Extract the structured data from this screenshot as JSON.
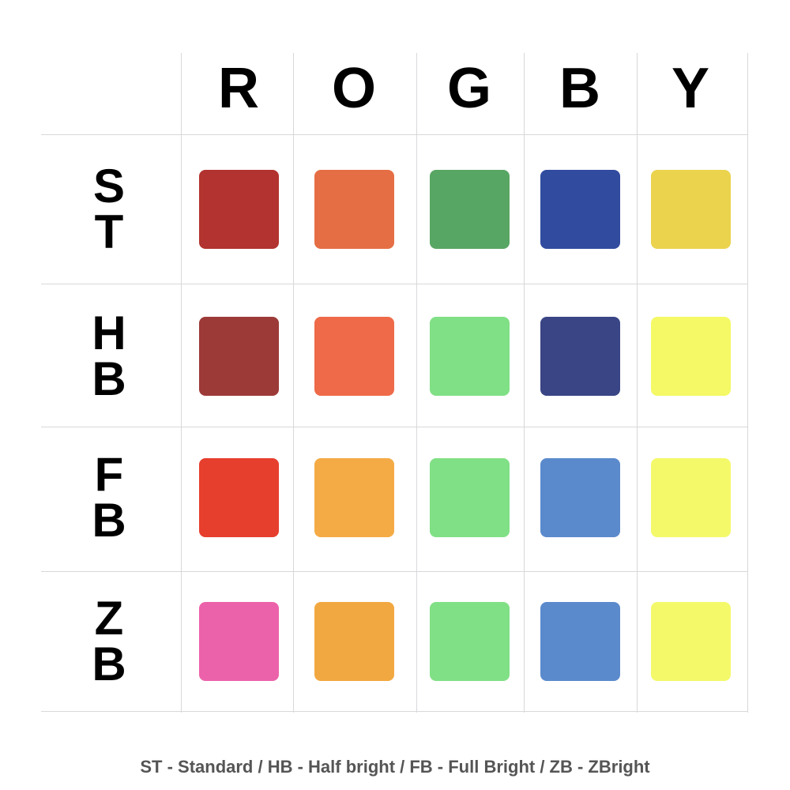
{
  "columns": [
    "R",
    "O",
    "G",
    "B",
    "Y"
  ],
  "rows": [
    {
      "label_top": "S",
      "label_bottom": "T",
      "colors": [
        "#b2332f",
        "#e56e44",
        "#58a663",
        "#314b9f",
        "#ebd34e"
      ]
    },
    {
      "label_top": "H",
      "label_bottom": "B",
      "colors": [
        "#9c3a38",
        "#ee6a48",
        "#80e085",
        "#3a4585",
        "#f4f965"
      ]
    },
    {
      "label_top": "F",
      "label_bottom": "B",
      "colors": [
        "#e63f2d",
        "#f4ab45",
        "#80e085",
        "#5b8acc",
        "#f4f96a"
      ]
    },
    {
      "label_top": "Z",
      "label_bottom": "B",
      "colors": [
        "#ec62aa",
        "#f2a840",
        "#80e085",
        "#5b8acc",
        "#f4f96a"
      ]
    }
  ],
  "footer": "ST - Standard / HB - Half bright / FB - Full Bright / ZB - ZBright"
}
